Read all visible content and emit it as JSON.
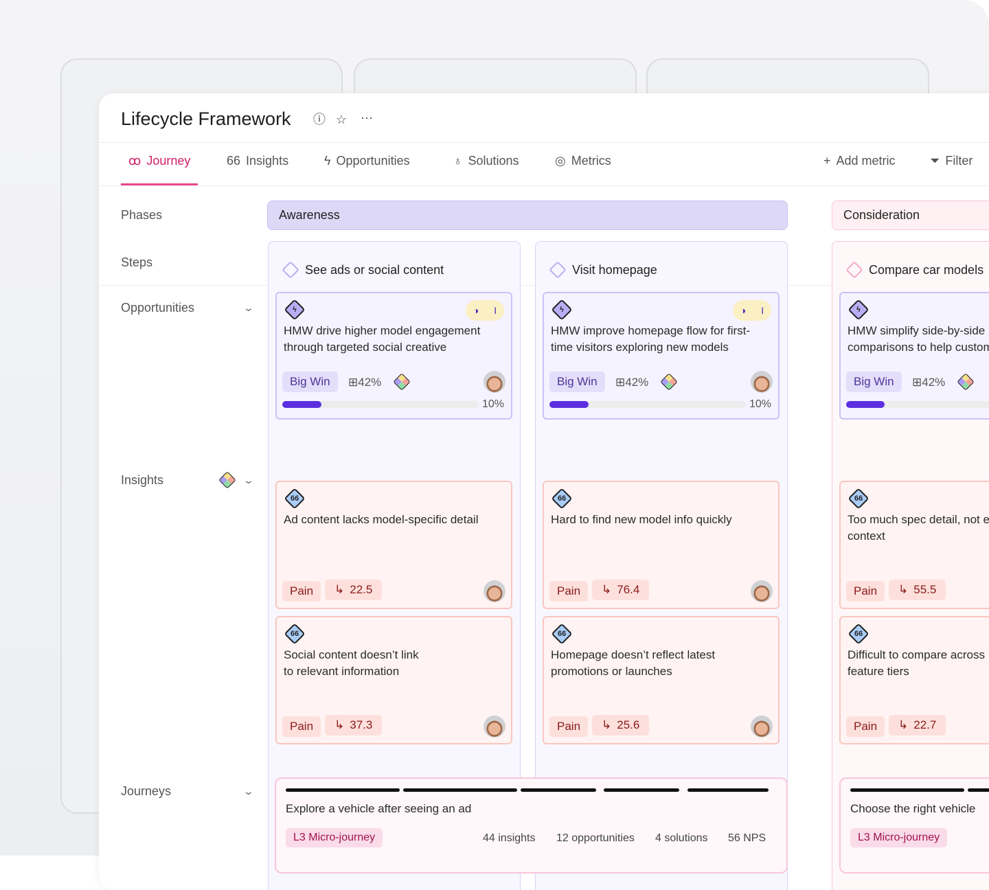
{
  "header": {
    "title": "Lifecycle Framework",
    "icons": [
      "info-icon",
      "star-icon",
      "more-icon"
    ]
  },
  "tabs": [
    {
      "label": "Journey",
      "icon": "journey-icon",
      "active": true
    },
    {
      "label": "Insights",
      "icon": "quote-icon"
    },
    {
      "label": "Opportunities",
      "icon": "lightning-icon"
    },
    {
      "label": "Solutions",
      "icon": "lightbulb-icon"
    },
    {
      "label": "Metrics",
      "icon": "gauge-icon"
    }
  ],
  "toolbar": {
    "add_metric": "Add metric",
    "filter": "Filter"
  },
  "rows": {
    "phases": "Phases",
    "steps": "Steps",
    "opportunities": "Opportunities",
    "insights": "Insights",
    "journeys": "Journeys"
  },
  "phases": [
    {
      "label": "Awareness",
      "color": "#ddd8f6"
    },
    {
      "label": "Consideration",
      "color": "#fff0f3"
    }
  ],
  "colors": {
    "accent": "#d1226a",
    "progress": "#5b2fe0",
    "opportunity_border": "#cbc3f5",
    "insight_border": "#f8c7c0"
  },
  "columns": [
    {
      "step": "See ads or social content",
      "opportunity": {
        "text": "HMW drive higher model engagement\nthrough targeted social creative",
        "tag": "Big Win",
        "metric": "42%",
        "progress_label": "10%",
        "progress": 10,
        "pill": "I"
      },
      "insights": [
        {
          "text": "Ad content lacks model-specific detail",
          "tag": "Pain",
          "score": "22.5"
        },
        {
          "text": "Social content doesn’t link\nto relevant information",
          "tag": "Pain",
          "score": "37.3"
        }
      ],
      "journey": {
        "title": "Explore a vehicle after seeing an ad",
        "tag": "L3 Micro-journey",
        "stats": [
          "44 insights",
          "12 opportunities",
          "4 solutions",
          "56 NPS"
        ]
      }
    },
    {
      "step": "Visit homepage",
      "opportunity": {
        "text": "HMW improve homepage flow for first-\ntime visitors exploring new models",
        "tag": "Big Win",
        "metric": "42%",
        "progress_label": "10%",
        "progress": 10,
        "pill": "I"
      },
      "insights": [
        {
          "text": "Hard to find new model info quickly",
          "tag": "Pain",
          "score": "76.4"
        },
        {
          "text": "Homepage doesn’t reflect latest\npromotions or launches",
          "tag": "Pain",
          "score": "25.6"
        }
      ]
    },
    {
      "step": "Compare car models",
      "opportunity": {
        "text": "HMW simplify side-by-side\ncomparisons to help customers",
        "tag": "Big Win",
        "metric": "42%",
        "progress": 10
      },
      "insights": [
        {
          "text": "Too much spec detail, not enough\ncontext",
          "tag": "Pain",
          "score": "55.5"
        },
        {
          "text": "Difficult to compare across\nfeature tiers",
          "tag": "Pain",
          "score": "22.7"
        }
      ],
      "journey": {
        "title": "Choose the right vehicle",
        "tag": "L3 Micro-journey"
      }
    }
  ]
}
